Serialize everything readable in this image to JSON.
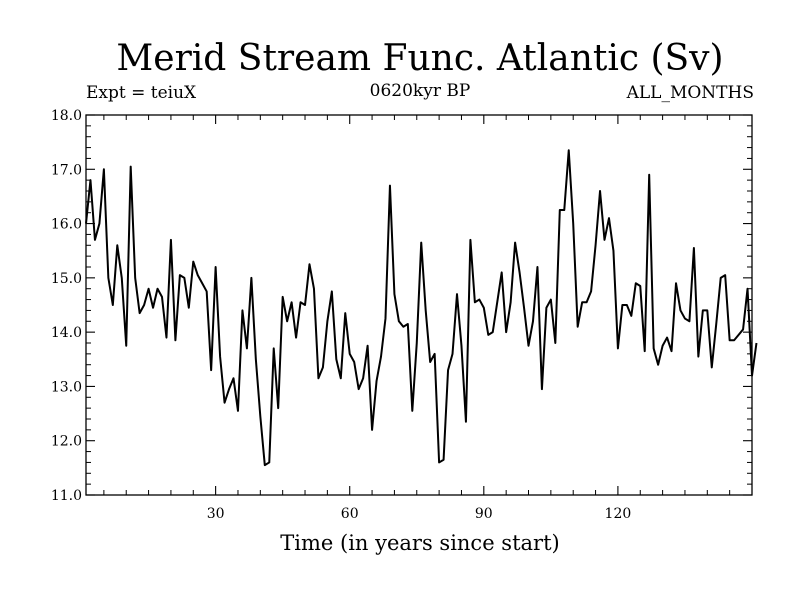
{
  "chart_data": {
    "type": "line",
    "title": "Merid Stream Func. Atlantic (Sv)",
    "subtitle_left": "Expt = teiuX",
    "subtitle_center": "0620kyr BP",
    "subtitle_right": "ALL_MONTHS",
    "xlabel": "Time (in years since start)",
    "ylabel": "",
    "xlim": [
      1,
      150
    ],
    "ylim": [
      11.0,
      18.0
    ],
    "x_ticks": [
      30,
      60,
      90,
      120
    ],
    "x_tick_labels": [
      "30",
      "60",
      "90",
      "120"
    ],
    "y_ticks": [
      11.0,
      12.0,
      13.0,
      14.0,
      15.0,
      16.0,
      17.0,
      18.0
    ],
    "y_tick_labels": [
      "11.0",
      "12.0",
      "13.0",
      "14.0",
      "15.0",
      "16.0",
      "17.0",
      "18.0"
    ],
    "grid": false,
    "series": [
      {
        "name": "Merid Stream Func.",
        "color": "#000000",
        "x_start": 1,
        "x_step": 1,
        "values": [
          16.0,
          16.8,
          15.7,
          16.0,
          17.0,
          15.0,
          14.5,
          15.6,
          15.0,
          13.75,
          17.05,
          15.0,
          14.35,
          14.5,
          14.8,
          14.45,
          14.8,
          14.65,
          13.9,
          15.7,
          13.85,
          15.05,
          15.0,
          14.45,
          15.3,
          15.05,
          14.9,
          14.75,
          13.3,
          15.2,
          13.55,
          12.7,
          12.95,
          13.15,
          12.55,
          14.4,
          13.7,
          15.0,
          13.5,
          12.45,
          11.55,
          11.6,
          13.7,
          12.6,
          14.65,
          14.2,
          14.55,
          13.9,
          14.55,
          14.5,
          15.25,
          14.8,
          13.15,
          13.35,
          14.2,
          14.75,
          13.5,
          13.15,
          14.35,
          13.6,
          13.45,
          12.95,
          13.15,
          13.75,
          12.2,
          13.1,
          13.55,
          14.25,
          16.7,
          14.7,
          14.2,
          14.1,
          14.15,
          12.55,
          13.8,
          15.65,
          14.4,
          13.45,
          13.6,
          11.6,
          11.65,
          13.3,
          13.6,
          14.7,
          13.75,
          12.35,
          15.7,
          14.55,
          14.6,
          14.45,
          13.95,
          14.0,
          14.55,
          15.1,
          14.0,
          14.55,
          15.65,
          15.1,
          14.45,
          13.75,
          14.2,
          15.2,
          12.95,
          14.45,
          14.6,
          13.8,
          16.25,
          16.25,
          17.35,
          16.0,
          14.1,
          14.55,
          14.55,
          14.75,
          15.6,
          16.6,
          15.7,
          16.1,
          15.5,
          13.7,
          14.5,
          14.5,
          14.3,
          14.9,
          14.85,
          13.65,
          16.9,
          13.7,
          13.4,
          13.75,
          13.9,
          13.65,
          14.9,
          14.4,
          14.25,
          14.2,
          15.55,
          13.55,
          14.4,
          14.4,
          13.35,
          14.15,
          15.0,
          15.05,
          13.85,
          13.85,
          13.95,
          14.05,
          14.8,
          13.2,
          13.8
        ]
      }
    ]
  }
}
